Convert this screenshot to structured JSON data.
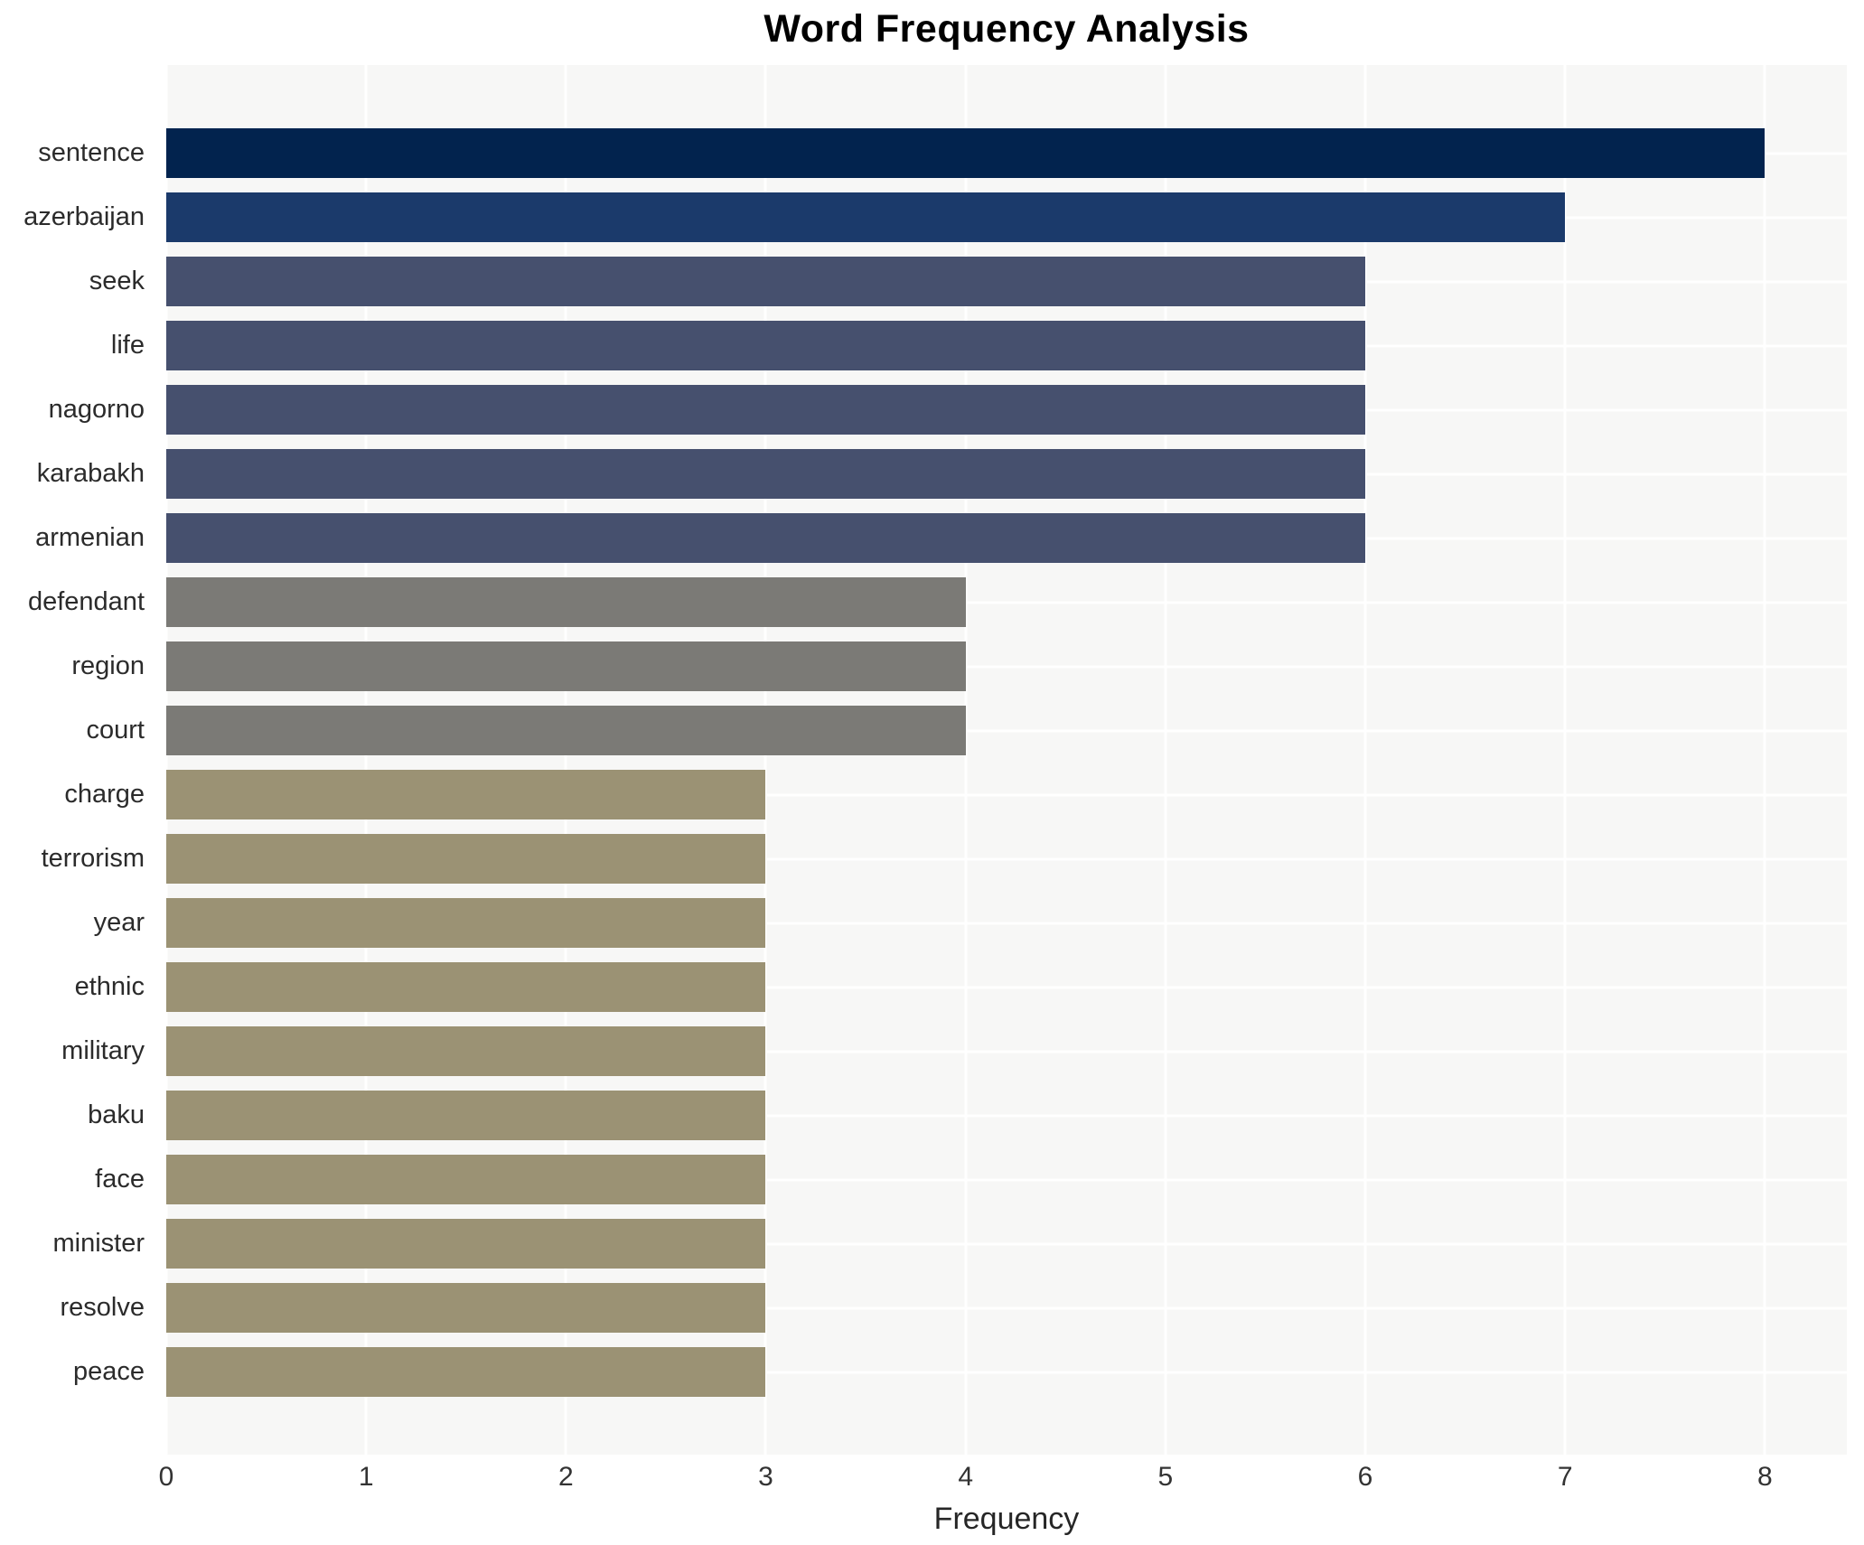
{
  "title": "Word Frequency Analysis",
  "chart_data": {
    "type": "bar",
    "orientation": "horizontal",
    "title": "Word Frequency Analysis",
    "xlabel": "Frequency",
    "ylabel": "",
    "categories": [
      "sentence",
      "azerbaijan",
      "seek",
      "life",
      "nagorno",
      "karabakh",
      "armenian",
      "defendant",
      "region",
      "court",
      "charge",
      "terrorism",
      "year",
      "ethnic",
      "military",
      "baku",
      "face",
      "minister",
      "resolve",
      "peace"
    ],
    "values": [
      8,
      7,
      6,
      6,
      6,
      6,
      6,
      4,
      4,
      4,
      3,
      3,
      3,
      3,
      3,
      3,
      3,
      3,
      3,
      3
    ],
    "bar_colors": [
      "#02234e",
      "#1b3a6b",
      "#46506e",
      "#46506e",
      "#46506e",
      "#46506e",
      "#46506e",
      "#7b7a76",
      "#7b7a76",
      "#7b7a76",
      "#9b9274",
      "#9b9274",
      "#9b9274",
      "#9b9274",
      "#9b9274",
      "#9b9274",
      "#9b9274",
      "#9b9274",
      "#9b9274",
      "#9b9274"
    ],
    "xlim": [
      0,
      8.41
    ],
    "xticks": [
      0,
      1,
      2,
      3,
      4,
      5,
      6,
      7,
      8
    ],
    "grid": true,
    "legend_position": "none",
    "plot_bg": "#f7f7f6",
    "grid_color": "#ffffff",
    "figure_bg": "#ffffff",
    "text_color": "#2b2b2b"
  }
}
